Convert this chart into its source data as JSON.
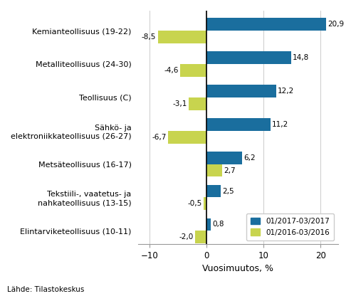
{
  "categories": [
    "Kemianteollisuus (19-22)",
    "Metalliteollisuus (24-30)",
    "Teollisuus (C)",
    "Sähkö- ja\nelektroniikkateollisuus (26-27)",
    "Metsäteollisuus (16-17)",
    "Tekstiili-, vaatetus- ja\nnahkateollisuus (13-15)",
    "Elintarviketeollisuus (10-11)"
  ],
  "values_2017": [
    20.9,
    14.8,
    12.2,
    11.2,
    6.2,
    2.5,
    0.8
  ],
  "values_2016": [
    -8.5,
    -4.6,
    -3.1,
    -6.7,
    2.7,
    -0.5,
    -2.0
  ],
  "color_2017": "#1a6e9e",
  "color_2016": "#c8d44e",
  "xlabel": "Vuosimuutos, %",
  "legend_2017": "01/2017-03/2017",
  "legend_2016": "01/2016-03/2016",
  "source": "Lähde: Tilastokeskus",
  "xlim": [
    -12,
    23
  ],
  "bar_height": 0.38
}
